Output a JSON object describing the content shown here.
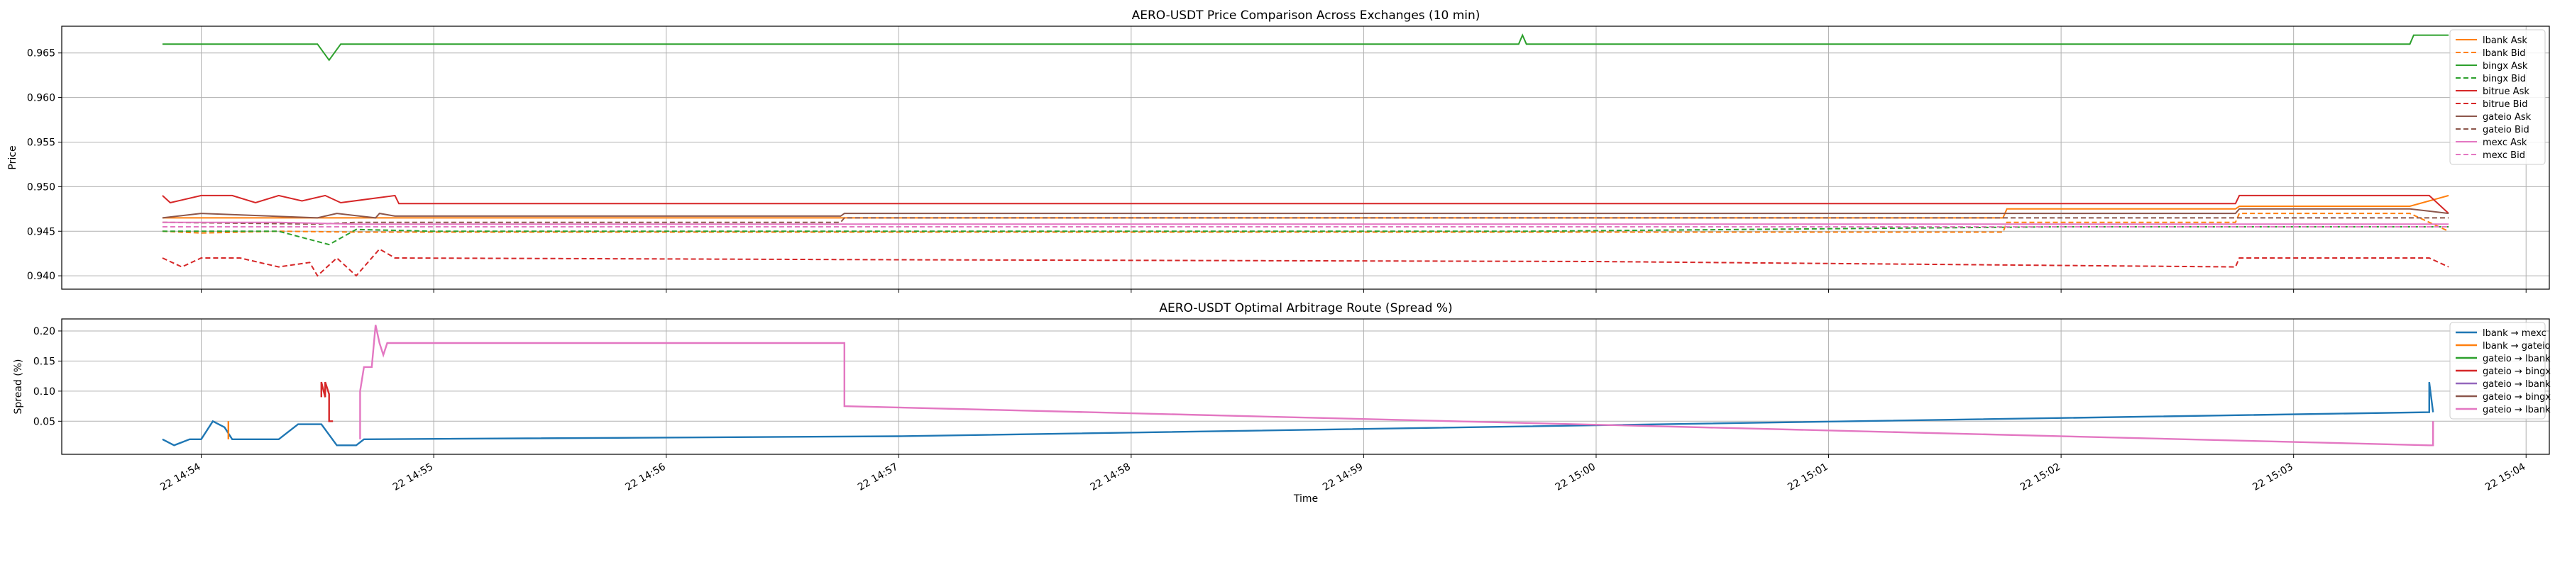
{
  "chart_data": [
    {
      "type": "line",
      "title": "AERO-USDT Price Comparison Across Exchanges (10 min)",
      "xlabel": "",
      "ylabel": "Price",
      "ylim": [
        0.9385,
        0.968
      ],
      "yticks": [
        0.94,
        0.945,
        0.95,
        0.955,
        0.96,
        0.965
      ],
      "ytick_labels": [
        "0.940",
        "0.945",
        "0.950",
        "0.955",
        "0.960",
        "0.965"
      ],
      "grid": true,
      "legend_position": "top-right",
      "series": [
        {
          "name": "lbank Ask",
          "color": "#ff7f0e",
          "dash": false,
          "x": [
            "14:53:50",
            "14:54:00",
            "14:54:20",
            "14:54:40",
            "14:55:00",
            "14:57:00",
            "15:00:00",
            "15:01:45",
            "15:01:46",
            "15:02:45",
            "15:02:46",
            "15:03:30",
            "15:03:40"
          ],
          "y": [
            0.9465,
            0.9465,
            0.9465,
            0.9465,
            0.9465,
            0.9465,
            0.9465,
            0.9465,
            0.9475,
            0.9475,
            0.9478,
            0.9478,
            0.949
          ]
        },
        {
          "name": "lbank Bid",
          "color": "#ff7f0e",
          "dash": true,
          "x": [
            "14:53:50",
            "14:54:00",
            "14:54:20",
            "14:54:40",
            "14:55:00",
            "14:57:00",
            "15:00:00",
            "15:01:45",
            "15:01:46",
            "15:02:45",
            "15:02:46",
            "15:03:30",
            "15:03:40"
          ],
          "y": [
            0.945,
            0.9448,
            0.945,
            0.9449,
            0.9449,
            0.9449,
            0.9449,
            0.9449,
            0.946,
            0.946,
            0.947,
            0.947,
            0.945
          ]
        },
        {
          "name": "bingx Ask",
          "color": "#2ca02c",
          "dash": false,
          "x": [
            "14:53:50",
            "14:54:30",
            "14:54:33",
            "14:54:36",
            "14:55:00",
            "14:59:40",
            "14:59:41",
            "14:59:42",
            "15:03:30",
            "15:03:31",
            "15:03:40"
          ],
          "y": [
            0.966,
            0.966,
            0.9642,
            0.966,
            0.966,
            0.966,
            0.967,
            0.966,
            0.966,
            0.967,
            0.967
          ]
        },
        {
          "name": "bingx Bid",
          "color": "#2ca02c",
          "dash": true,
          "x": [
            "14:53:50",
            "14:54:20",
            "14:54:33",
            "14:54:40",
            "14:55:00",
            "14:57:00",
            "14:59:41",
            "15:02:00",
            "15:03:30",
            "15:03:40"
          ],
          "y": [
            0.945,
            0.945,
            0.9435,
            0.9452,
            0.945,
            0.945,
            0.945,
            0.9455,
            0.9455,
            0.9455
          ]
        },
        {
          "name": "bitrue Ask",
          "color": "#d62728",
          "dash": false,
          "x": [
            "14:53:50",
            "14:53:52",
            "14:54:00",
            "14:54:08",
            "14:54:14",
            "14:54:20",
            "14:54:26",
            "14:54:32",
            "14:54:36",
            "14:54:50",
            "14:54:51",
            "15:02:45",
            "15:02:46",
            "15:03:35",
            "15:03:40"
          ],
          "y": [
            0.949,
            0.9482,
            0.949,
            0.949,
            0.9482,
            0.949,
            0.9484,
            0.949,
            0.9482,
            0.949,
            0.9481,
            0.9481,
            0.949,
            0.949,
            0.947
          ]
        },
        {
          "name": "bitrue Bid",
          "color": "#d62728",
          "dash": true,
          "x": [
            "14:53:50",
            "14:53:55",
            "14:54:00",
            "14:54:10",
            "14:54:20",
            "14:54:28",
            "14:54:30",
            "14:54:35",
            "14:54:40",
            "14:54:46",
            "14:54:50",
            "14:57:00",
            "15:00:00",
            "15:02:45",
            "15:02:46",
            "15:03:35",
            "15:03:40"
          ],
          "y": [
            0.942,
            0.941,
            0.942,
            0.942,
            0.941,
            0.9415,
            0.94,
            0.942,
            0.94,
            0.943,
            0.942,
            0.9418,
            0.9416,
            0.941,
            0.942,
            0.942,
            0.941
          ]
        },
        {
          "name": "gateio Ask",
          "color": "#8c564b",
          "dash": false,
          "x": [
            "14:53:50",
            "14:54:00",
            "14:54:30",
            "14:54:35",
            "14:54:45",
            "14:54:46",
            "14:54:50",
            "14:56:45",
            "14:56:46",
            "15:02:45",
            "15:02:46",
            "15:03:30",
            "15:03:40"
          ],
          "y": [
            0.9465,
            0.947,
            0.9465,
            0.947,
            0.9465,
            0.947,
            0.9467,
            0.9467,
            0.947,
            0.947,
            0.9475,
            0.9475,
            0.947
          ]
        },
        {
          "name": "gateio Bid",
          "color": "#8c564b",
          "dash": true,
          "x": [
            "14:53:50",
            "14:54:30",
            "14:54:40",
            "14:56:45",
            "14:56:46",
            "15:02:45",
            "15:03:40"
          ],
          "y": [
            0.946,
            0.9458,
            0.946,
            0.946,
            0.9465,
            0.9465,
            0.9465
          ]
        },
        {
          "name": "mexc Ask",
          "color": "#e377c2",
          "dash": false,
          "x": [
            "14:53:50",
            "14:54:20",
            "14:54:40",
            "14:57:00",
            "15:03:40"
          ],
          "y": [
            0.946,
            0.946,
            0.9458,
            0.9458,
            0.9458
          ]
        },
        {
          "name": "mexc Bid",
          "color": "#e377c2",
          "dash": true,
          "x": [
            "14:53:50",
            "14:54:20",
            "14:54:40",
            "14:57:00",
            "15:03:40"
          ],
          "y": [
            0.9455,
            0.9455,
            0.9455,
            0.9455,
            0.9455
          ]
        }
      ]
    },
    {
      "type": "line",
      "title": "AERO-USDT Optimal Arbitrage Route (Spread %)",
      "xlabel": "Time",
      "ylabel": "Spread (%)",
      "ylim": [
        -0.005,
        0.22
      ],
      "yticks": [
        0.05,
        0.1,
        0.15,
        0.2
      ],
      "ytick_labels": [
        "0.05",
        "0.10",
        "0.15",
        "0.20"
      ],
      "xlim": [
        "14:53:24",
        "15:04:06"
      ],
      "xticks": [
        "14:54:00",
        "14:55:00",
        "14:56:00",
        "14:57:00",
        "14:58:00",
        "14:59:00",
        "15:00:00",
        "15:01:00",
        "15:02:00",
        "15:03:00",
        "15:04:00"
      ],
      "xtick_labels": [
        "22 14:54",
        "22 14:55",
        "22 14:56",
        "22 14:57",
        "22 14:58",
        "22 14:59",
        "22 15:00",
        "22 15:01",
        "22 15:02",
        "22 15:03",
        "22 15:04"
      ],
      "grid": true,
      "legend_position": "top-right",
      "series": [
        {
          "name": "lbank → mexc",
          "color": "#1f77b4",
          "x": [
            "14:53:50",
            "14:53:53",
            "14:53:57",
            "14:54:00",
            "14:54:03",
            "14:54:06",
            "14:54:08",
            "14:54:11",
            "14:54:20",
            "14:54:25",
            "14:54:31",
            "14:54:35",
            "14:54:40",
            "14:54:42",
            "14:57:00",
            "15:03:35",
            "15:03:35",
            "15:03:36"
          ],
          "y": [
            0.02,
            0.01,
            0.02,
            0.02,
            0.05,
            0.04,
            0.02,
            0.02,
            0.02,
            0.045,
            0.045,
            0.01,
            0.01,
            0.02,
            0.025,
            0.065,
            0.115,
            0.065
          ]
        },
        {
          "name": "lbank → gateio",
          "color": "#ff7f0e",
          "x": [
            "14:54:07",
            "14:54:07"
          ],
          "y": [
            0.05,
            0.02
          ]
        },
        {
          "name": "gateio → lbank",
          "color": "#2ca02c",
          "x": [],
          "y": []
        },
        {
          "name": "gateio → bingx",
          "color": "#d62728",
          "x": [
            "14:54:31",
            "14:54:31",
            "14:54:32",
            "14:54:32",
            "14:54:33",
            "14:54:33",
            "14:54:34"
          ],
          "y": [
            0.09,
            0.115,
            0.09,
            0.115,
            0.095,
            0.05,
            0.05
          ]
        },
        {
          "name": "gateio → lbank",
          "color": "#9467bd",
          "x": [],
          "y": []
        },
        {
          "name": "gateio → bingx",
          "color": "#8c564b",
          "x": [],
          "y": []
        },
        {
          "name": "gateio → lbank",
          "color": "#e377c2",
          "x": [
            "14:54:41",
            "14:54:41",
            "14:54:42",
            "14:54:44",
            "14:54:45",
            "14:54:46",
            "14:54:47",
            "14:54:48",
            "14:54:50",
            "14:56:45",
            "14:56:46",
            "14:56:46",
            "15:03:35",
            "15:03:36",
            "15:03:36"
          ],
          "y": [
            0.02,
            0.1,
            0.14,
            0.14,
            0.21,
            0.18,
            0.16,
            0.18,
            0.18,
            0.18,
            0.18,
            0.075,
            0.01,
            0.01,
            0.05
          ]
        }
      ]
    }
  ]
}
